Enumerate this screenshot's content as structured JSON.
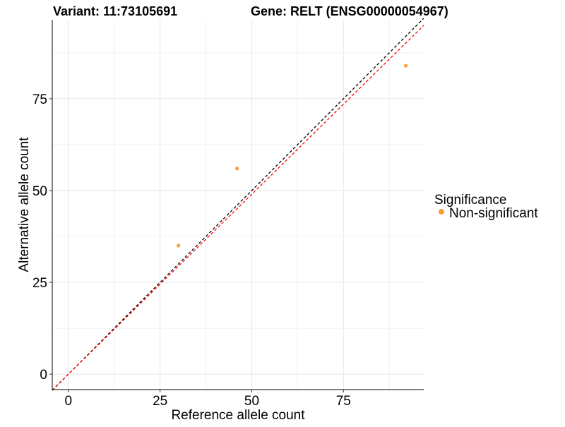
{
  "chart_data": {
    "type": "scatter",
    "title_variant": "Variant: 11:73105691",
    "title_gene": "Gene: RELT (ENSG00000054967)",
    "xlabel": "Reference allele count",
    "ylabel": "Alternative allele count",
    "xlim": [
      -4.4,
      96.9
    ],
    "ylim": [
      -4.2,
      96.5
    ],
    "xticks": [
      0,
      25,
      50,
      75
    ],
    "yticks": [
      0,
      25,
      50,
      75
    ],
    "grid": true,
    "legend": {
      "title": "Significance",
      "placement": "right",
      "entries": [
        {
          "label": "Non-significant",
          "color": "#F7A035"
        }
      ]
    },
    "points": [
      {
        "x": 30,
        "y": 35,
        "group": "Non-significant"
      },
      {
        "x": 46,
        "y": 56,
        "group": "Non-significant"
      },
      {
        "x": 92,
        "y": 84,
        "group": "Non-significant"
      }
    ],
    "reference_lines": [
      {
        "name": "identity",
        "slope": 1,
        "intercept": 0,
        "color": "#000000",
        "style": "dashed"
      },
      {
        "name": "fit",
        "slope": 0.98,
        "intercept": 0,
        "color": "#FF0000",
        "style": "dashed"
      }
    ]
  }
}
